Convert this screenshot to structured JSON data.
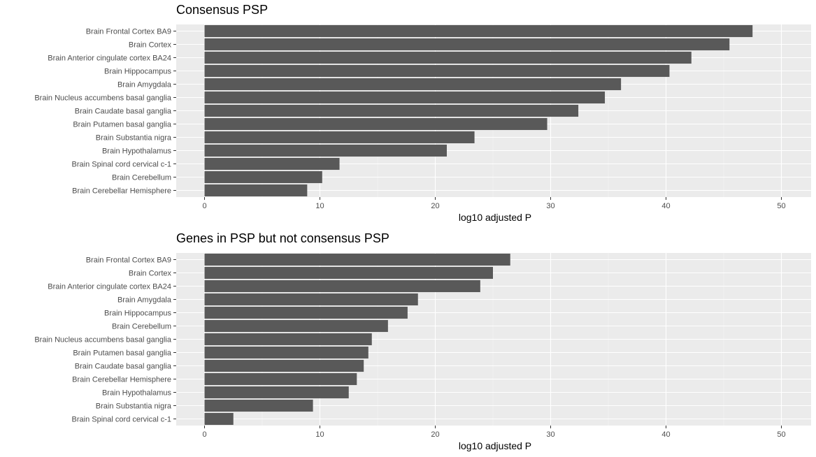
{
  "chart_data": [
    {
      "type": "bar",
      "orientation": "horizontal",
      "title": "Consensus PSP",
      "xlabel": "log10 adjusted P",
      "ylabel": "",
      "xlim": [
        0,
        52
      ],
      "xticks": [
        0,
        10,
        20,
        30,
        40,
        50
      ],
      "grid": true,
      "legend": "none",
      "bar_color": "#595959",
      "panel_color": "#ebebeb",
      "categories": [
        "Brain Frontal Cortex BA9",
        "Brain Cortex",
        "Brain Anterior cingulate cortex BA24",
        "Brain Hippocampus",
        "Brain Amygdala",
        "Brain Nucleus accumbens basal ganglia",
        "Brain Caudate basal ganglia",
        "Brain Putamen basal ganglia",
        "Brain Substantia nigra",
        "Brain Hypothalamus",
        "Brain Spinal cord cervical c-1",
        "Brain Cerebellum",
        "Brain Cerebellar Hemisphere"
      ],
      "values": [
        47.5,
        45.5,
        42.2,
        40.3,
        36.1,
        34.7,
        32.4,
        29.7,
        23.4,
        21.0,
        11.7,
        10.2,
        8.9
      ]
    },
    {
      "type": "bar",
      "orientation": "horizontal",
      "title": "Genes in PSP but not consensus PSP",
      "xlabel": "log10 adjusted P",
      "ylabel": "",
      "xlim": [
        0,
        52
      ],
      "xticks": [
        0,
        10,
        20,
        30,
        40,
        50
      ],
      "grid": true,
      "legend": "none",
      "bar_color": "#595959",
      "panel_color": "#ebebeb",
      "categories": [
        "Brain Frontal Cortex BA9",
        "Brain Cortex",
        "Brain Anterior cingulate cortex BA24",
        "Brain Amygdala",
        "Brain Hippocampus",
        "Brain Cerebellum",
        "Brain Nucleus accumbens basal ganglia",
        "Brain Putamen basal ganglia",
        "Brain Caudate basal ganglia",
        "Brain Cerebellar Hemisphere",
        "Brain Hypothalamus",
        "Brain Substantia nigra",
        "Brain Spinal cord cervical c-1"
      ],
      "values": [
        26.5,
        25.0,
        23.9,
        18.5,
        17.6,
        15.9,
        14.5,
        14.2,
        13.8,
        13.2,
        12.5,
        9.4,
        2.5
      ]
    }
  ]
}
